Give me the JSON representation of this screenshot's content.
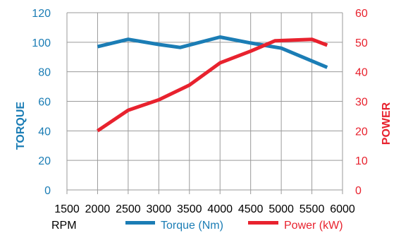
{
  "chart_data": {
    "type": "line",
    "x_axis": {
      "label": "RPM",
      "ticks": [
        1500,
        2000,
        2500,
        3000,
        3500,
        4000,
        4500,
        5000,
        5500,
        6000
      ],
      "range": [
        1500,
        6000
      ]
    },
    "y_left": {
      "label": "TORQUE",
      "ticks": [
        0,
        20,
        40,
        60,
        80,
        100,
        120
      ],
      "range": [
        0,
        120
      ],
      "color": "#1B7DB5"
    },
    "y_right": {
      "label": "POWER",
      "ticks": [
        0,
        10,
        20,
        30,
        40,
        50,
        60
      ],
      "range": [
        0,
        60
      ],
      "color": "#E8222E"
    },
    "grid": true,
    "legend_position": "bottom",
    "series": [
      {
        "name": "Torque (Nm)",
        "axis": "left",
        "color": "#1B7DB5",
        "x": [
          2000,
          2500,
          3000,
          3350,
          4000,
          4500,
          5000,
          5750
        ],
        "y": [
          97,
          102,
          98.5,
          96.5,
          103.5,
          99.5,
          96,
          83
        ]
      },
      {
        "name": "Power (kW)",
        "axis": "right",
        "color": "#E8222E",
        "x": [
          2000,
          2500,
          3000,
          3500,
          4000,
          4500,
          4900,
          5500,
          5750
        ],
        "y": [
          20,
          27,
          30.5,
          35.5,
          43,
          47,
          50.5,
          51,
          49
        ]
      }
    ]
  }
}
